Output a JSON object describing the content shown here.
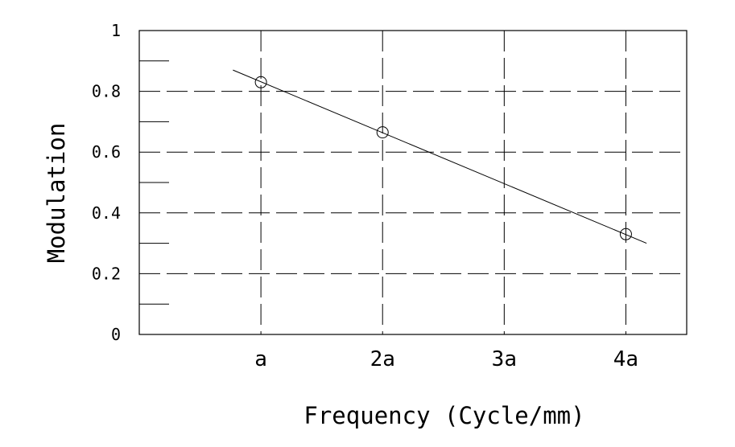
{
  "chart_data": {
    "type": "scatter",
    "xlabel": "Frequency (Cycle/mm)",
    "ylabel": "Modulation",
    "x_tick_labels": [
      "a",
      "2a",
      "3a",
      "4a"
    ],
    "y_tick_labels": [
      "0",
      "0.2",
      "0.4",
      "0.6",
      "0.8",
      "1"
    ],
    "xlim": [
      0,
      4.5
    ],
    "ylim": [
      0,
      1
    ],
    "grid": true,
    "series": [
      {
        "points": [
          {
            "x": 1,
            "y": 0.83
          },
          {
            "x": 2,
            "y": 0.665
          },
          {
            "x": 4,
            "y": 0.33
          }
        ],
        "marker": "open-circle"
      }
    ],
    "fit_line": {
      "x": [
        0.77,
        4.17
      ],
      "y": [
        0.87,
        0.3
      ]
    }
  }
}
